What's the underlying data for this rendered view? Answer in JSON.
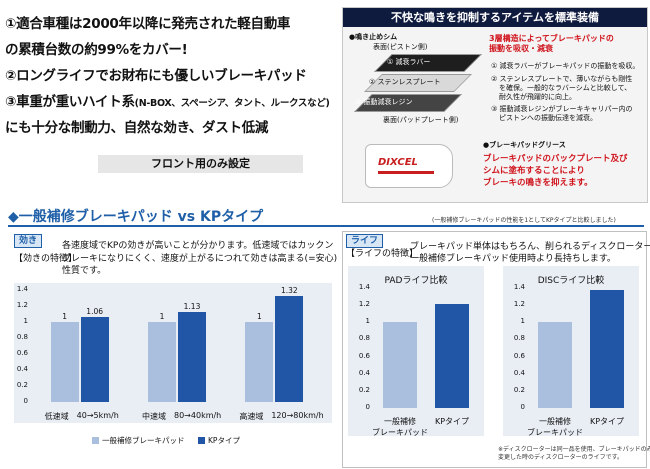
{
  "features": [
    {
      "line1": "①適合車種は2000年以降に発売された軽自動車",
      "line2": "の累積台数の約99%をカバー!"
    },
    {
      "line1": "②ロングライフでお財布にも優しいブレーキパッド"
    },
    {
      "line1": "③車重が重いハイト系",
      "line1_small": "(N-BOX、スペーシア、タント、ルークスなど)",
      "line2": "にも十分な制動力、自然な効き、ダスト低減"
    }
  ],
  "front_only": "フロント用のみ設定",
  "panel": {
    "header": "不快な鳴きを抑制するアイテムを標準装備",
    "shim_title": "●鳴き止めシム",
    "shim_sub": "表面(ピストン側)",
    "layers": [
      "① 減衰ラバー",
      "② ステンレスプレート",
      "③ 振動減衰レジン"
    ],
    "shim_back": "裏面(パッドプレート側)",
    "red_headline_1": "3層構造によってブレーキパッドの",
    "red_headline_2": "振動を吸収・減衰",
    "desc": [
      "① 減衰ラバーがブレーキパッドの振動を吸収。",
      "② ステンレスプレートで、薄いながらも剛性",
      "を確保。一般的なラバーシムと比較して、",
      "耐久性が飛躍的に向上。",
      "③ 振動減衰レジンがブレーキキャリパー内の",
      "ピストンへの振動伝達を減衰。"
    ],
    "grease_title": "●ブレーキパッドグリース",
    "grease_brand": "DIXCEL",
    "grease_red": [
      "ブレーキパッドのバックプレート及び",
      "シムに塗布することにより",
      "ブレーキの鳴きを抑えます。"
    ]
  },
  "section": {
    "title": "◆一般補修ブレーキパッド vs KPタイプ",
    "note": "(一般補修ブレーキパッドの性能を1としてKPタイプと比較しました)"
  },
  "effect": {
    "tag": "効き",
    "intro": "各速度域でKPの効きが高いことが分かります。低速域ではカックン",
    "feature_label": "【効きの特徴】",
    "lines": [
      "ブレーキになりにくく、速度が上がるにつれて効きは高まる(=安心)",
      "性質です。"
    ]
  },
  "life": {
    "tag": "ライフ",
    "feature_label": "【ライフの特徴】",
    "lines": [
      "ブレーキパッド単体はもちろん、削られるディスクローターも",
      "一般補修ブレーキパッド使用時より長持ちします。"
    ],
    "note": [
      "※ディスクローターは同一品を使用、ブレーキパッドのみ",
      "変更した時のディスクローターのライフです。"
    ]
  },
  "legend": {
    "general": "一般補修ブレーキパッド",
    "kp": "KPタイプ"
  },
  "colors": {
    "general": "#a9bfdd",
    "kp": "#2056a5",
    "chart_bg": "#e9eef5",
    "accent": "#1f5fa8",
    "red": "#d0121b",
    "navy": "#0e1a3e"
  },
  "chart_data": [
    {
      "type": "bar",
      "title": "",
      "categories": [
        "低速域 40→5km/h",
        "中速域 80→40km/h",
        "高速域 120→80km/h"
      ],
      "category_names": [
        "低速域",
        "中速域",
        "高速域"
      ],
      "category_ranges": [
        "40→5km/h",
        "80→40km/h",
        "120→80km/h"
      ],
      "series": [
        {
          "name": "一般補修ブレーキパッド",
          "values": [
            1,
            1,
            1
          ]
        },
        {
          "name": "KPタイプ",
          "values": [
            1.06,
            1.13,
            1.32
          ]
        }
      ],
      "ylim": [
        0,
        1.4
      ],
      "yticks": [
        "0",
        "0.2",
        "0.4",
        "0.6",
        "0.8",
        "1",
        "1.2",
        "1.4"
      ],
      "data_labels": [
        "1",
        "1.06",
        "1",
        "1.13",
        "1",
        "1.32"
      ],
      "grid": false,
      "legend": "bottom"
    },
    {
      "type": "bar",
      "title": "PADライフ比較",
      "categories": [
        "一般補修 ブレーキパッド",
        "KPタイプ"
      ],
      "category_lines": [
        [
          "一般補修",
          "ブレーキパッド"
        ],
        [
          "KPタイプ"
        ]
      ],
      "values": [
        1,
        1.21
      ],
      "ylim": [
        0,
        1.4
      ],
      "yticks": [
        "0",
        "0.2",
        "0.4",
        "0.6",
        "0.8",
        "1",
        "1.2",
        "1.4"
      ],
      "grid": false
    },
    {
      "type": "bar",
      "title": "DISCライフ比較",
      "categories": [
        "一般補修 ブレーキパッド",
        "KPタイプ"
      ],
      "category_lines": [
        [
          "一般補修",
          "ブレーキパッド"
        ],
        [
          "KPタイプ"
        ]
      ],
      "values": [
        1,
        1.38
      ],
      "ylim": [
        0,
        1.4
      ],
      "yticks": [
        "0",
        "0.2",
        "0.4",
        "0.6",
        "0.8",
        "1",
        "1.2",
        "1.4"
      ],
      "grid": false
    }
  ]
}
